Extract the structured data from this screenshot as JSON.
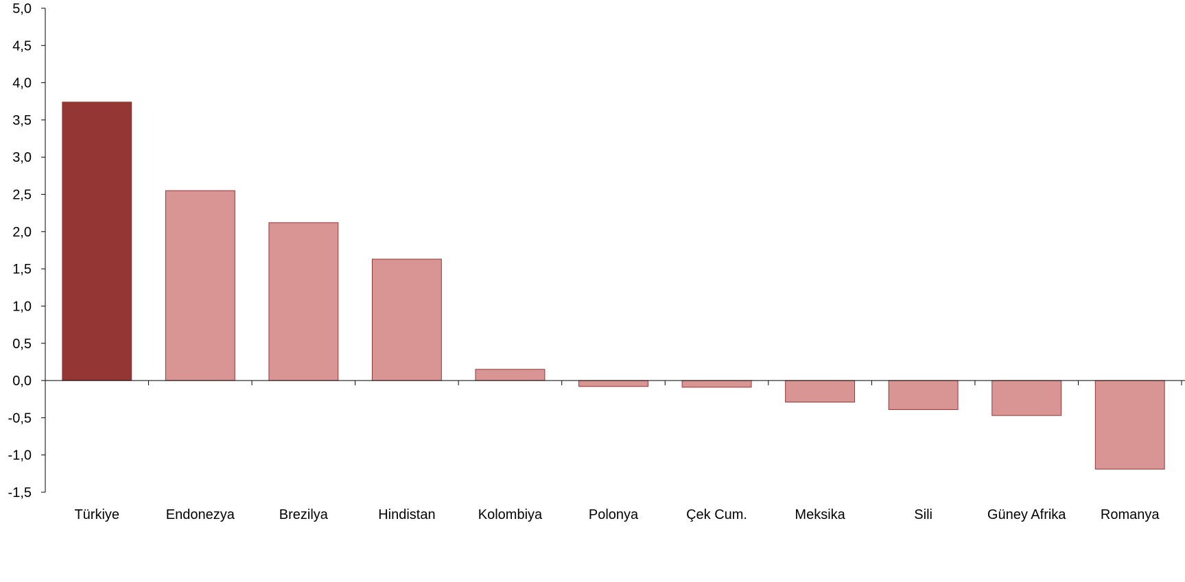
{
  "chart_data": {
    "type": "bar",
    "categories": [
      "Türkiye",
      "Endonezya",
      "Brezilya",
      "Hindistan",
      "Kolombiya",
      "Polonya",
      "Çek Cum.",
      "Meksika",
      "Sili",
      "Güney Afrika",
      "Romanya"
    ],
    "values": [
      3.74,
      2.55,
      2.12,
      1.63,
      0.15,
      -0.08,
      -0.09,
      -0.29,
      -0.39,
      -0.47,
      -1.19
    ],
    "ylim": [
      -1.5,
      5.0
    ],
    "yticks": [
      "-1,5",
      "-1,0",
      "-0,5",
      "0,0",
      "0,5",
      "1,0",
      "1,5",
      "2,0",
      "2,5",
      "3,0",
      "3,5",
      "4,0",
      "4,5",
      "5,0"
    ],
    "grid": false,
    "colors": {
      "highlight_fill": "#943634",
      "bar_fill": "#d99594",
      "bar_stroke": "#943634",
      "axis": "#000000"
    }
  }
}
